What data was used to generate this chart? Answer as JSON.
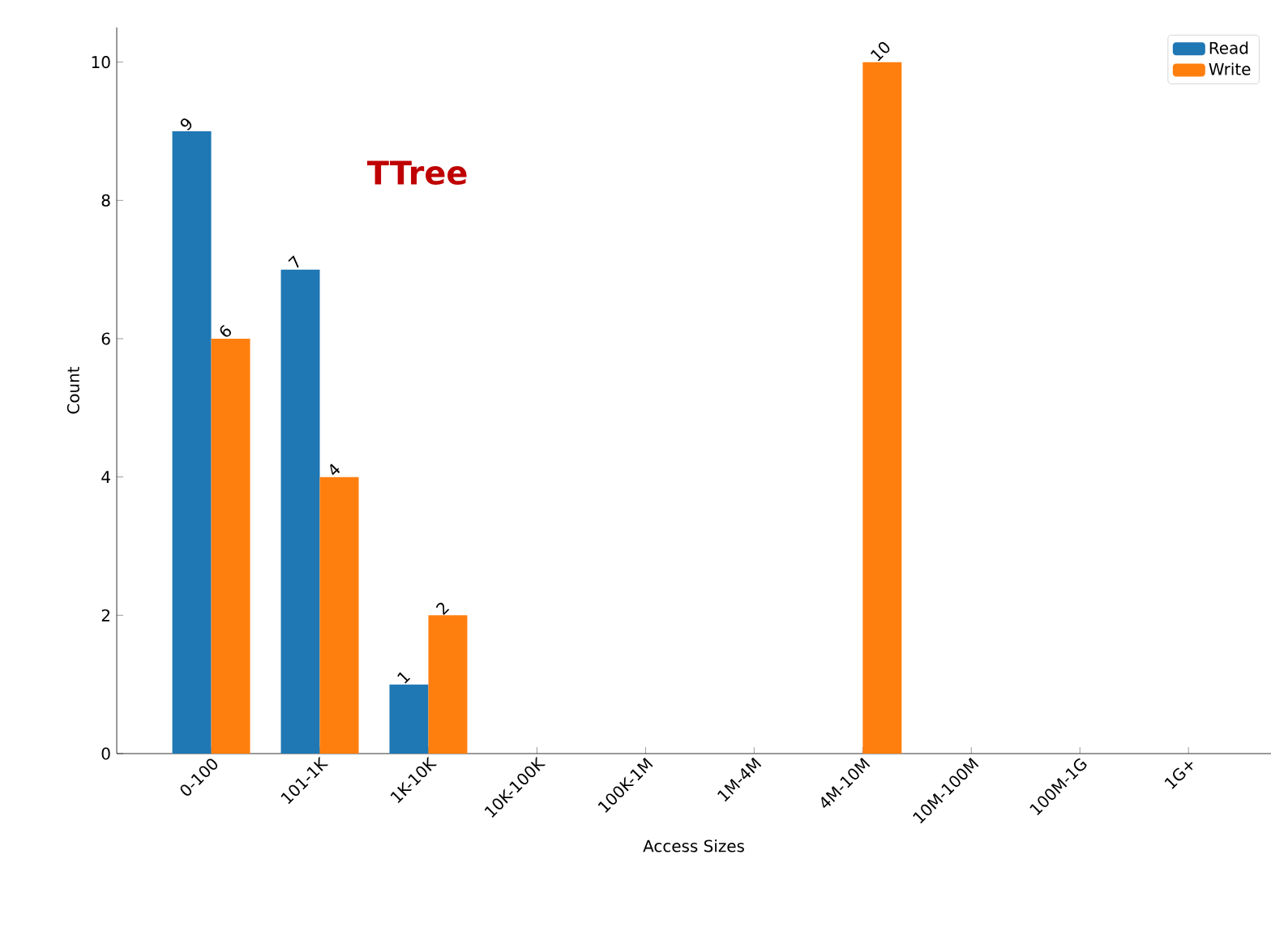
{
  "chart_data": {
    "type": "bar",
    "xlabel": "Access Sizes",
    "ylabel": "Count",
    "categories": [
      "0-100",
      "101-1K",
      "1K-10K",
      "10K-100K",
      "100K-1M",
      "1M-4M",
      "4M-10M",
      "10M-100M",
      "100M-1G",
      "1G+"
    ],
    "series": [
      {
        "name": "Read",
        "color": "#1f77b4",
        "values": [
          9,
          7,
          1,
          0,
          0,
          0,
          0,
          0,
          0,
          0
        ],
        "value_labels": [
          "9",
          "7",
          "1",
          null,
          null,
          null,
          null,
          null,
          null,
          null
        ]
      },
      {
        "name": "Write",
        "color": "#ff7f0e",
        "values": [
          6,
          4,
          2,
          0,
          0,
          0,
          10,
          0,
          0,
          0
        ],
        "value_labels": [
          "6",
          "4",
          "2",
          null,
          null,
          null,
          "10",
          null,
          null,
          null
        ]
      }
    ],
    "annotations": [
      "TTree"
    ],
    "ylim": [
      0,
      10.5
    ],
    "yticks": [
      0,
      2,
      4,
      6,
      8,
      10
    ],
    "legend": "top right",
    "grid": false
  }
}
